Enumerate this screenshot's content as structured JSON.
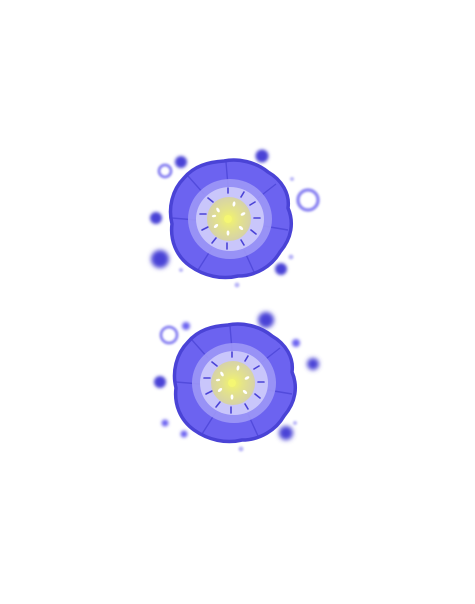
{
  "scene": {
    "background": "#ffffff",
    "description_label": "",
    "flowers": [
      {
        "name": "flower-top",
        "petal_color": "#6c63f0",
        "petal_inner_color": "#9d97f6",
        "ring_color": "#c9c6fb",
        "center_color": "#d8d49a",
        "center_glow": "#eef06a",
        "edge_color": "#4a43d6"
      },
      {
        "name": "flower-bottom",
        "petal_color": "#6c63f0",
        "petal_inner_color": "#9d97f6",
        "ring_color": "#c9c6fb",
        "center_color": "#d8d49a",
        "center_glow": "#eef06a",
        "edge_color": "#4a43d6"
      }
    ],
    "bokeh_color": "#4a43d6",
    "bokeh_ring_color": "#8d86f2"
  }
}
